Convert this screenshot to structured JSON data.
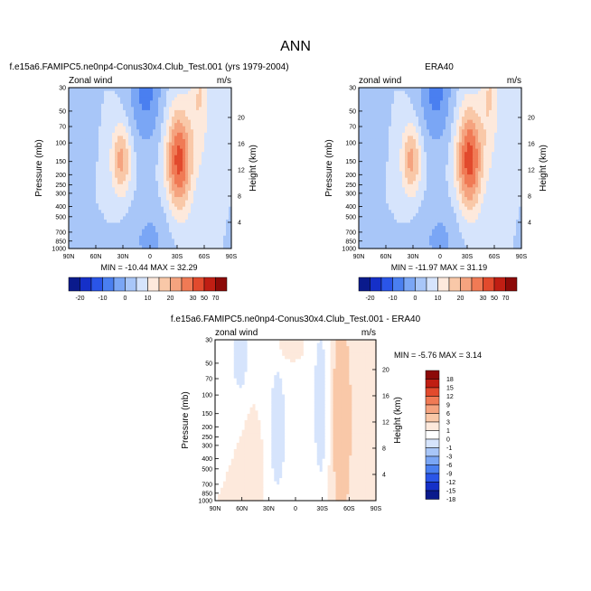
{
  "figure_title": "ANN",
  "colors": {
    "abs_scale": [
      "#0a1a8c",
      "#1530c8",
      "#2a55e8",
      "#4a7ff0",
      "#7aa6f5",
      "#a8c6f8",
      "#d6e4fc",
      "#fde9dc",
      "#f9c8a8",
      "#f5a37f",
      "#f07a55",
      "#e24a2d",
      "#c01e13",
      "#8c0a08"
    ],
    "diff_scale": [
      "#0a1a8c",
      "#1530c8",
      "#2a55e8",
      "#4a7ff0",
      "#7aa6f5",
      "#a8c6f8",
      "#d6e4fc",
      "#ffffff",
      "#fde9dc",
      "#f9c8a8",
      "#f5a37f",
      "#f07a55",
      "#e24a2d",
      "#c01e13",
      "#8c0a08"
    ]
  },
  "chart_data": [
    {
      "type": "heatmap",
      "panel": "model",
      "title": "f.e15a6.FAMIPC5.ne0np4-Conus30x4.Club_Test.001 (yrs 1979-2004)",
      "left_label": "Zonal wind",
      "right_label": "m/s",
      "xlabel": "",
      "ylabel": "Pressure (mb)",
      "ylabel_right": "Height (km)",
      "x_ticks": [
        "90N",
        "60N",
        "30N",
        "0",
        "30S",
        "60S",
        "90S"
      ],
      "y_ticks": [
        "30",
        "50",
        "70",
        "100",
        "150",
        "200",
        "250",
        "300",
        "400",
        "500",
        "700",
        "850",
        "1000"
      ],
      "height_ticks": [
        "20",
        "16",
        "12",
        "8",
        "4"
      ],
      "min_max": "MIN = -10.44  MAX = 32.29",
      "colorbar_labels": [
        "-20",
        "-10",
        "0",
        "10",
        "20",
        "30",
        "50",
        "70"
      ],
      "min": -10.44,
      "max": 32.29
    },
    {
      "type": "heatmap",
      "panel": "obs",
      "title": "ERA40",
      "left_label": "zonal wind",
      "right_label": "m/s",
      "xlabel": "",
      "ylabel": "Pressure (mb)",
      "ylabel_right": "Height (km)",
      "x_ticks": [
        "90N",
        "60N",
        "30N",
        "0",
        "30S",
        "60S",
        "90S"
      ],
      "y_ticks": [
        "30",
        "50",
        "70",
        "100",
        "150",
        "200",
        "250",
        "300",
        "400",
        "500",
        "700",
        "850",
        "1000"
      ],
      "height_ticks": [
        "20",
        "16",
        "12",
        "8",
        "4"
      ],
      "min_max": "MIN = -11.97  MAX = 31.19",
      "colorbar_labels": [
        "-20",
        "-10",
        "0",
        "10",
        "20",
        "30",
        "50",
        "70"
      ],
      "min": -11.97,
      "max": 31.19
    },
    {
      "type": "heatmap",
      "panel": "diff",
      "title": "f.e15a6.FAMIPC5.ne0np4-Conus30x4.Club_Test.001 - ERA40",
      "left_label": "zonal wind",
      "right_label": "m/s",
      "xlabel": "",
      "ylabel": "Pressure (mb)",
      "ylabel_right": "Height (km)",
      "x_ticks": [
        "90N",
        "60N",
        "30N",
        "0",
        "30S",
        "60S",
        "90S"
      ],
      "y_ticks": [
        "30",
        "50",
        "70",
        "100",
        "150",
        "200",
        "250",
        "300",
        "400",
        "500",
        "700",
        "850",
        "1000"
      ],
      "height_ticks": [
        "20",
        "16",
        "12",
        "8",
        "4"
      ],
      "min_max": "MIN = -5.76  MAX =  3.14",
      "colorbar_labels": [
        "18",
        "15",
        "12",
        "9",
        "6",
        "3",
        "1",
        "0",
        "-1",
        "-3",
        "-6",
        "-9",
        "-12",
        "-15",
        "-18"
      ],
      "min": -5.76,
      "max": 3.14
    }
  ]
}
